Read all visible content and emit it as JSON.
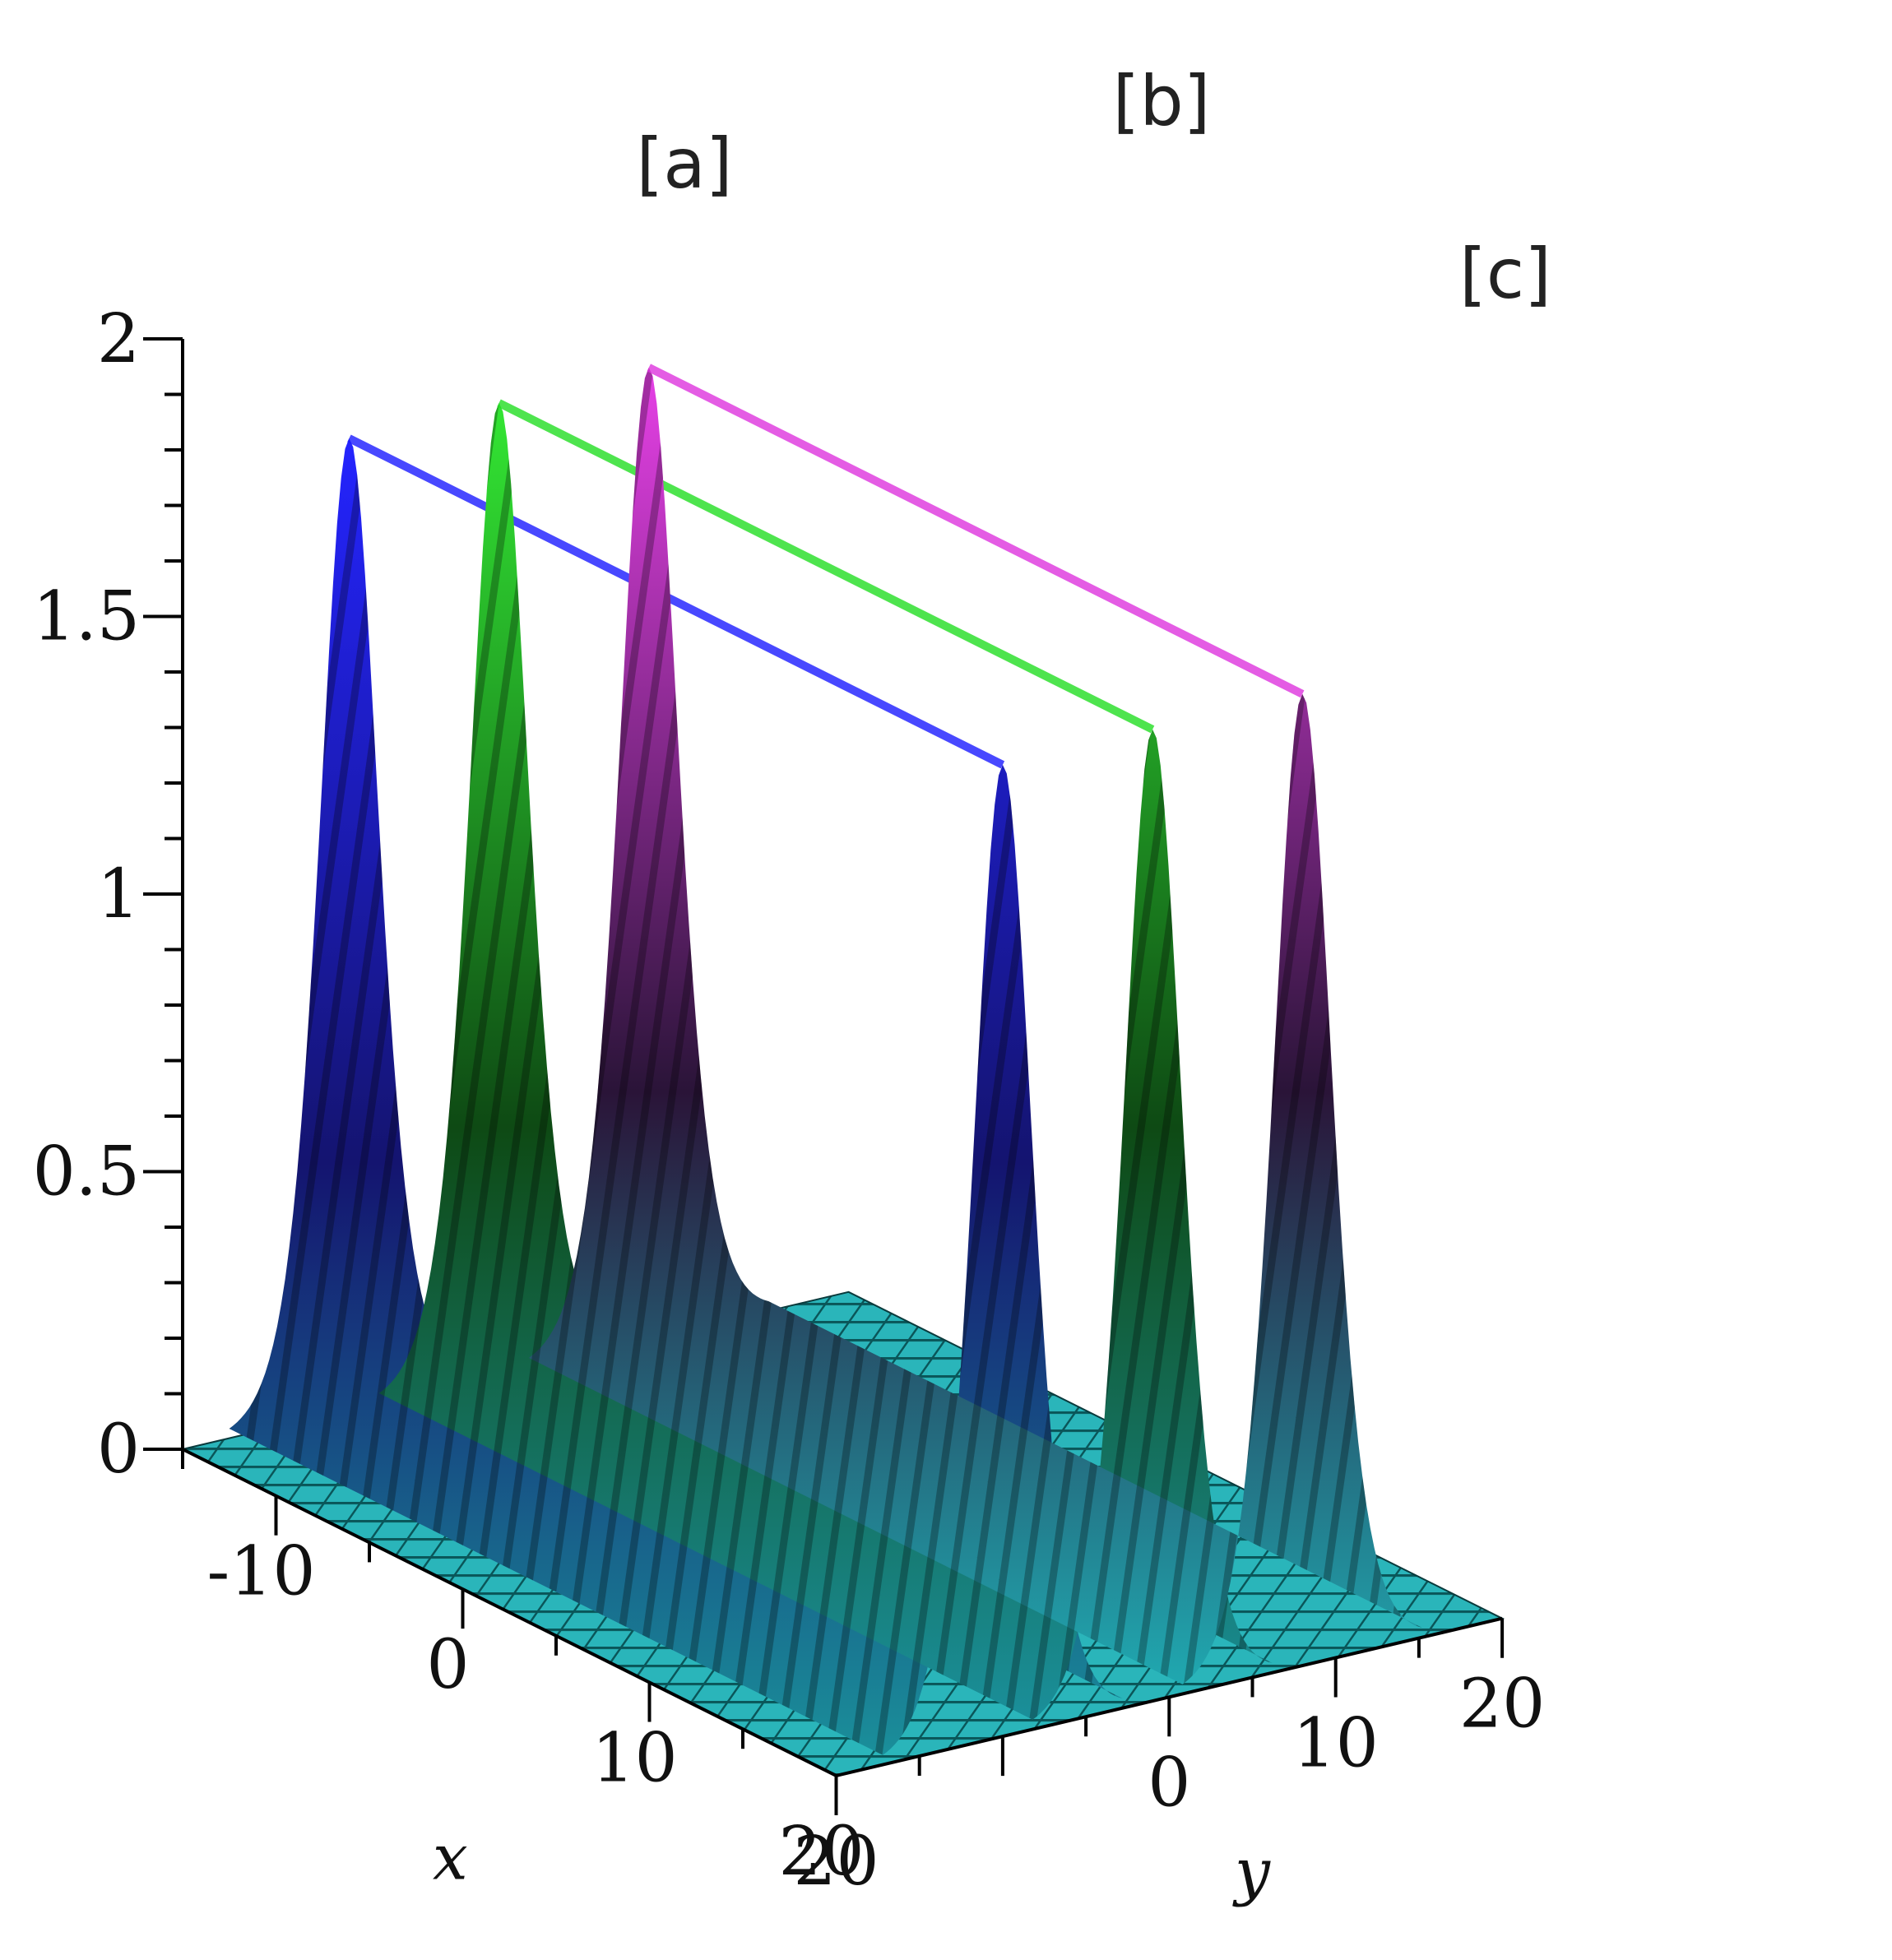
{
  "chart_data": {
    "type": "surface",
    "title": "",
    "xlabel": "x",
    "ylabel": "y",
    "zlabel": "",
    "xlim": [
      -15,
      20
    ],
    "ylim": [
      -20,
      20
    ],
    "zlim": [
      0,
      2
    ],
    "x_ticks": [
      "-10",
      "0",
      "10",
      "20"
    ],
    "y_ticks": [
      "0",
      "10",
      "20"
    ],
    "z_ticks": [
      "0",
      "0.5",
      "1",
      "1.5",
      "2"
    ],
    "grid": false,
    "legend": "none",
    "series": [
      {
        "name": "[a]",
        "center_y": -10,
        "peak": 1.75,
        "color": "#1a1aff"
      },
      {
        "name": "[b]",
        "center_y": -1,
        "peak": 1.75,
        "color": "#22dd22"
      },
      {
        "name": "[c]",
        "center_y": 8,
        "peak": 1.75,
        "color": "#dd33dd"
      }
    ],
    "base_color": "#33dddd"
  }
}
